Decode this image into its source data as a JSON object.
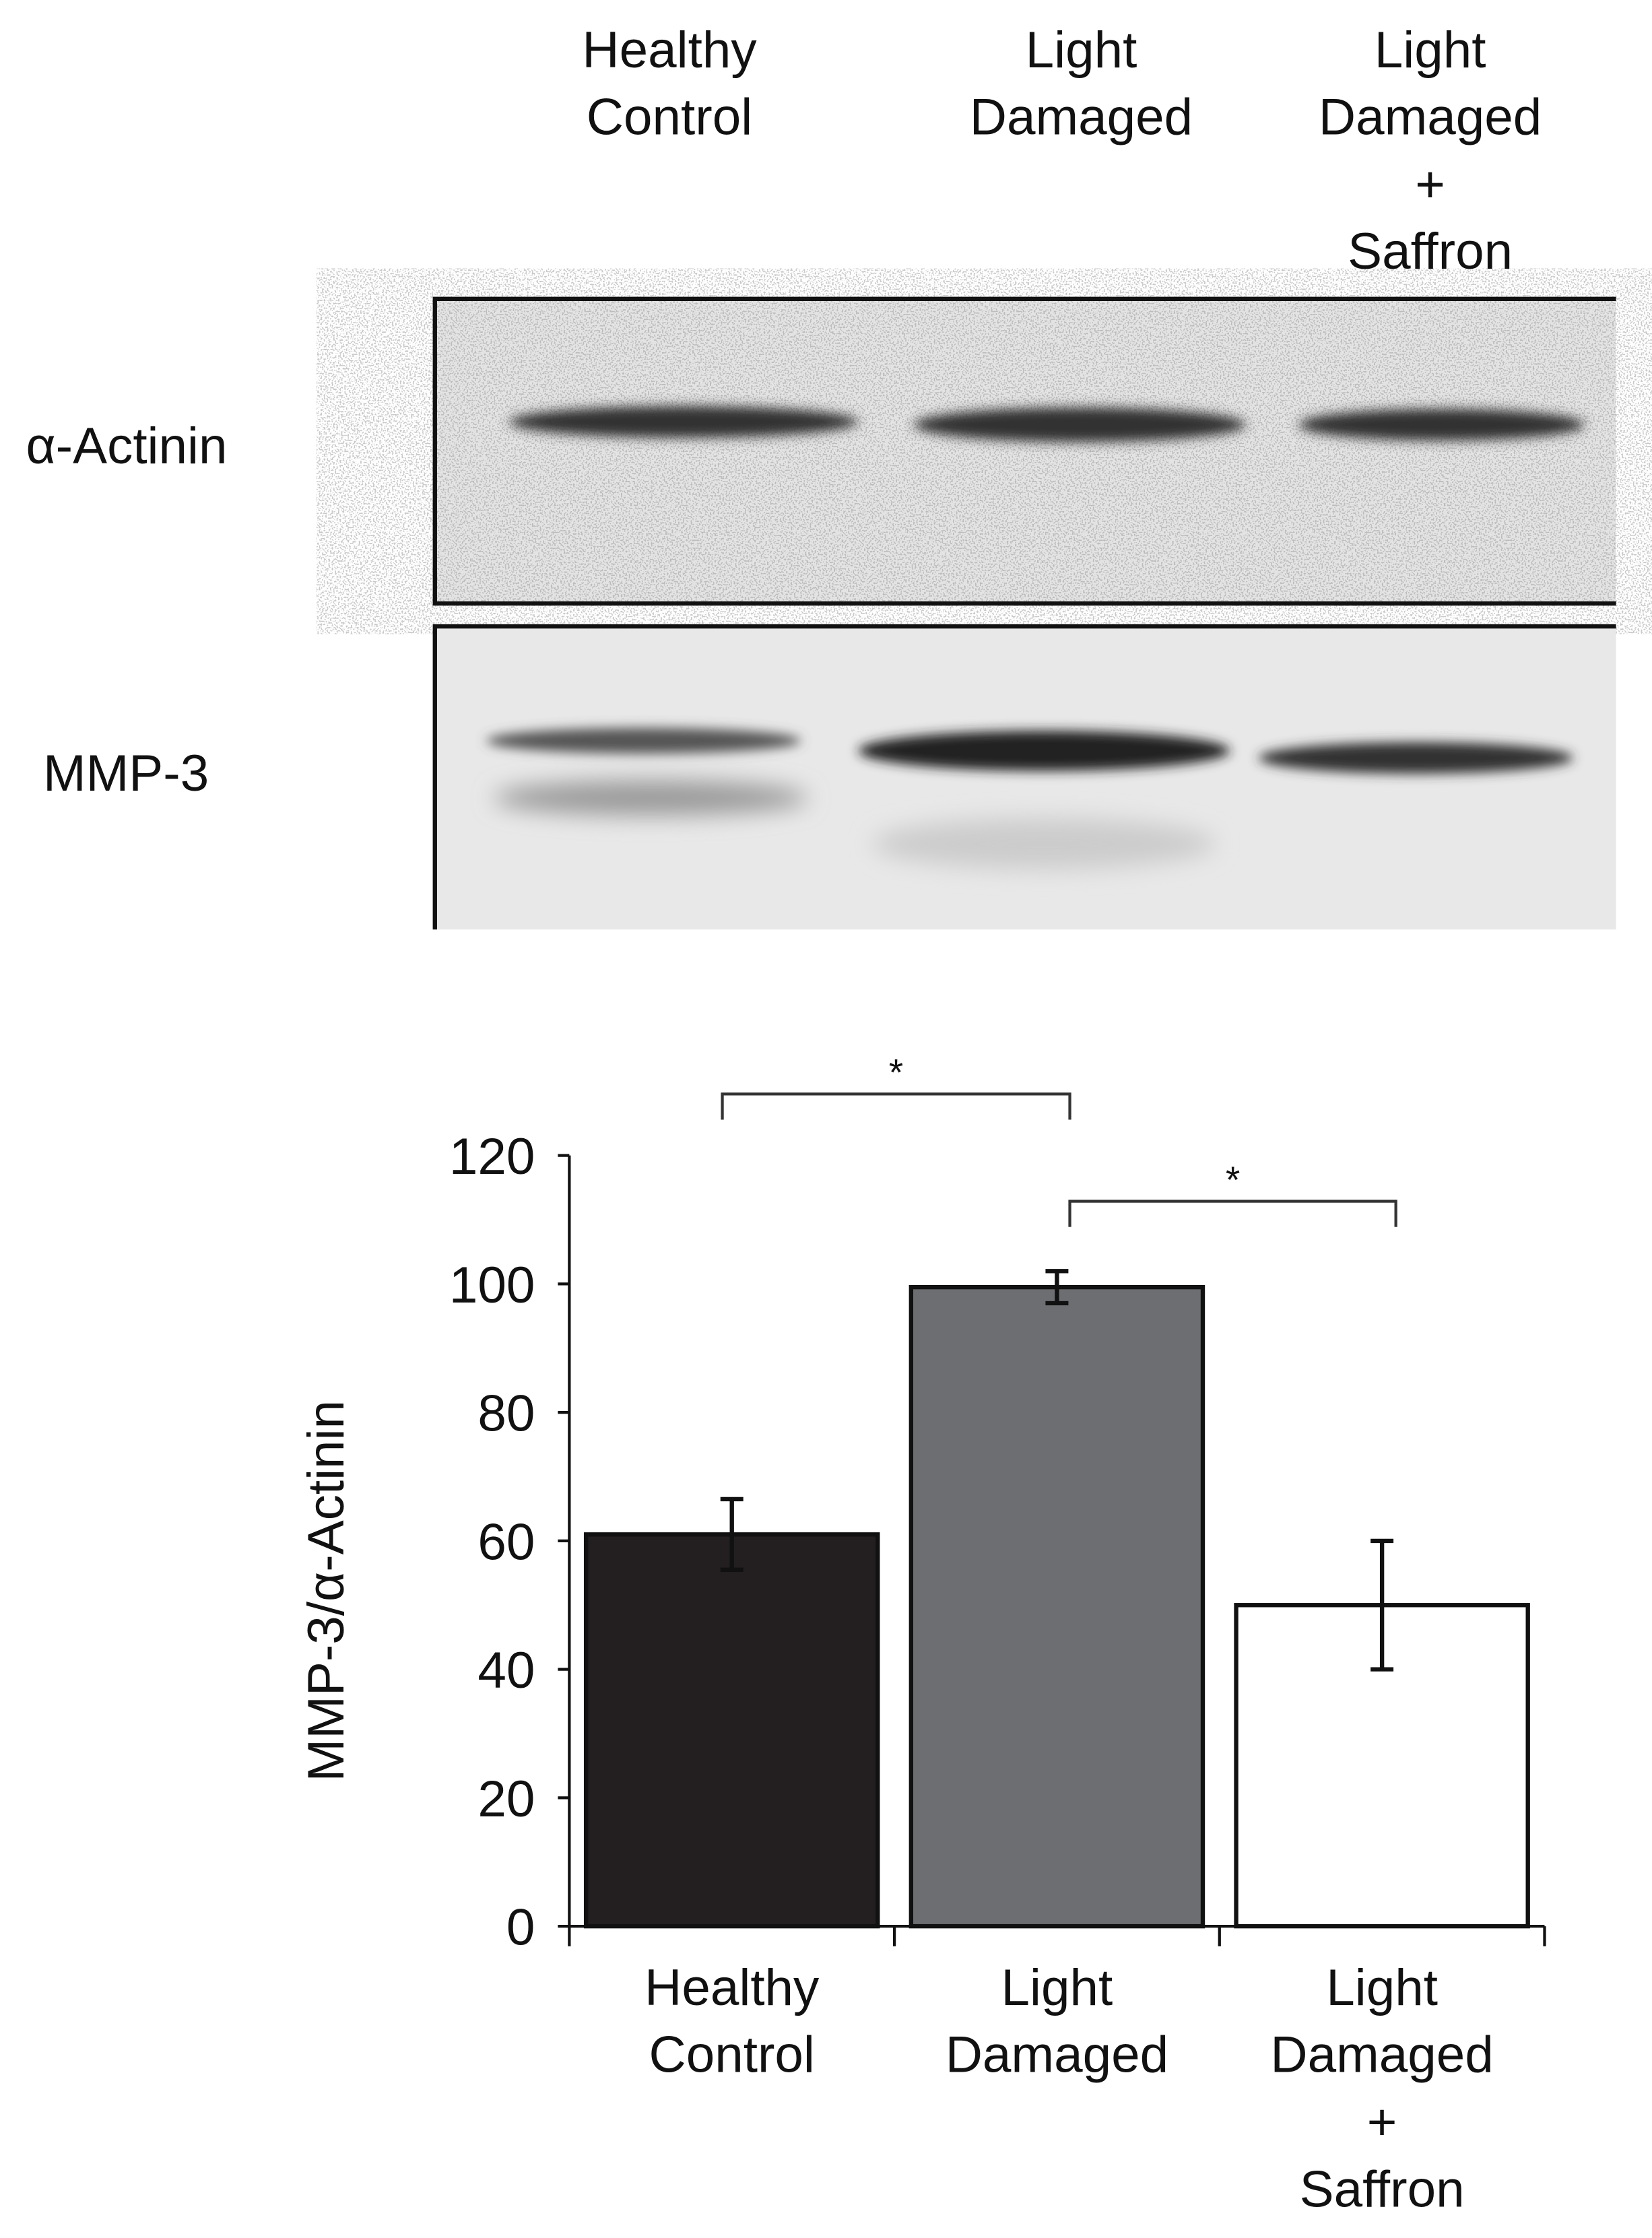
{
  "blot": {
    "lanes": [
      "Healthy\nControl",
      "Light\nDamaged",
      "Light\nDamaged\n+\nSaffron"
    ],
    "rows": [
      "α-Actinin",
      "MMP-3"
    ]
  },
  "chart_data": {
    "type": "bar",
    "categories": [
      "Healthy\nControl",
      "Light\nDamaged",
      "Light\nDamaged\n+\nSaffron"
    ],
    "values": [
      61,
      99.5,
      50
    ],
    "errors": [
      5.5,
      2.5,
      10
    ],
    "colors": [
      "#231f20",
      "#6d6e71",
      "#ffffff"
    ],
    "y_label": "MMP-3/α-Actinin",
    "ylim": [
      0,
      120
    ],
    "yticks": [
      0,
      20,
      40,
      60,
      80,
      100,
      120
    ],
    "significance": [
      {
        "label": "*",
        "pair": [
          0,
          1
        ]
      },
      {
        "label": "*",
        "pair": [
          1,
          2
        ]
      }
    ]
  }
}
